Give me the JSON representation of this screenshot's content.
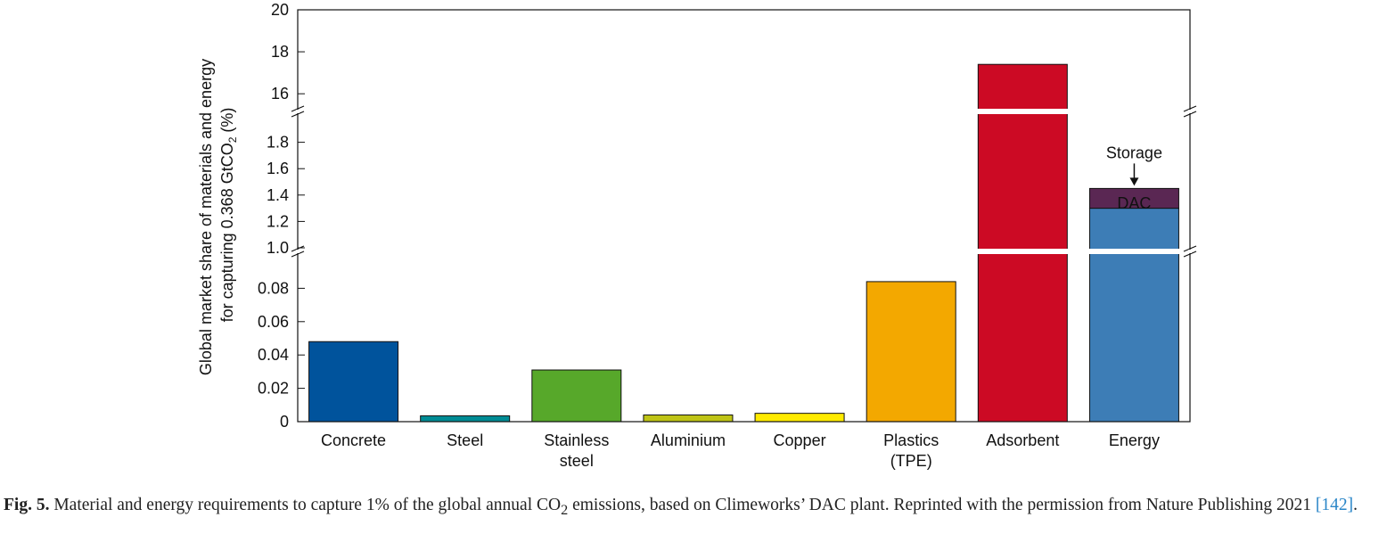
{
  "chart_data": {
    "type": "bar",
    "ylabel_line1": "Global market share of materials and energy",
    "ylabel_line2_prefix": "for capturing 0.368 GtCO",
    "ylabel_line2_sub": "2",
    "ylabel_line2_suffix": " (%)",
    "categories": [
      {
        "lines": [
          "Concrete"
        ]
      },
      {
        "lines": [
          "Steel"
        ]
      },
      {
        "lines": [
          "Stainless",
          "steel"
        ]
      },
      {
        "lines": [
          "Aluminium"
        ]
      },
      {
        "lines": [
          "Copper"
        ]
      },
      {
        "lines": [
          "Plastics",
          "(TPE)"
        ]
      },
      {
        "lines": [
          "Adsorbent"
        ]
      },
      {
        "lines": [
          "Energy"
        ]
      }
    ],
    "bars": [
      {
        "category": "Concrete",
        "value": 0.048,
        "color": "#00539c"
      },
      {
        "category": "Steel",
        "value": 0.0035,
        "color": "#008c95"
      },
      {
        "category": "Stainless steel",
        "value": 0.031,
        "color": "#57a82a"
      },
      {
        "category": "Aluminium",
        "value": 0.004,
        "color": "#bfc416"
      },
      {
        "category": "Copper",
        "value": 0.005,
        "color": "#ffeb00"
      },
      {
        "category": "Plastics (TPE)",
        "value": 0.084,
        "color": "#f3a800"
      },
      {
        "category": "Adsorbent",
        "value": 17.4,
        "color": "#cc0a24"
      },
      {
        "category": "Energy",
        "segments": [
          {
            "name": "DAC",
            "value": 1.3,
            "color": "#3d7db6",
            "label": "DAC"
          },
          {
            "name": "Storage",
            "value": 0.15,
            "color": "#5a2753"
          }
        ]
      }
    ],
    "annotation": "Storage",
    "y_axis_segments": [
      {
        "range": [
          0,
          0.1
        ],
        "ticks": [
          "0",
          "0.02",
          "0.04",
          "0.06",
          "0.08"
        ],
        "tick_values": [
          0,
          0.02,
          0.04,
          0.06,
          0.08
        ]
      },
      {
        "range": [
          1.0,
          2.0
        ],
        "ticks": [
          "1.0",
          "1.2",
          "1.4",
          "1.6",
          "1.8"
        ],
        "tick_values": [
          1.0,
          1.2,
          1.4,
          1.6,
          1.8
        ]
      },
      {
        "range": [
          15.2,
          20
        ],
        "ticks": [
          "16",
          "18",
          "20"
        ],
        "tick_values": [
          16,
          18,
          20
        ]
      }
    ],
    "axis_breaks": true,
    "grid": false
  },
  "caption": {
    "label": "Fig. 5.",
    "text_before_sub": " Material and energy requirements to capture 1% of the global annual CO",
    "sub": "2",
    "text_after_sub": " emissions, based on Climeworks’ DAC plant. Reprinted with the permission from Nature Publishing 2021 ",
    "ref": "[142]",
    "end": "."
  }
}
